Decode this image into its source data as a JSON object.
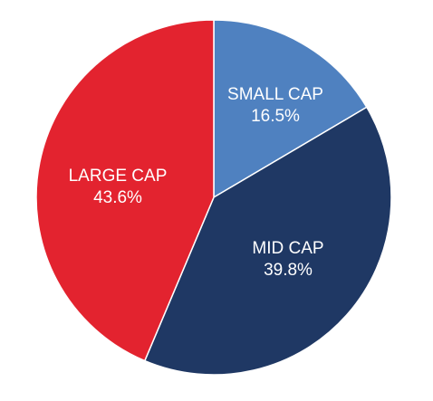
{
  "chart_data": {
    "type": "pie",
    "start_angle_deg": 0,
    "direction": "clockwise",
    "slices": [
      {
        "label": "SMALL CAP",
        "value": 16.5,
        "value_label": "16.5%",
        "color": "#4f81c0"
      },
      {
        "label": "MID CAP",
        "value": 39.8,
        "value_label": "39.8%",
        "color": "#1f3864"
      },
      {
        "label": "LARGE CAP",
        "value": 43.6,
        "value_label": "43.6%",
        "color": "#e3232f"
      }
    ]
  }
}
